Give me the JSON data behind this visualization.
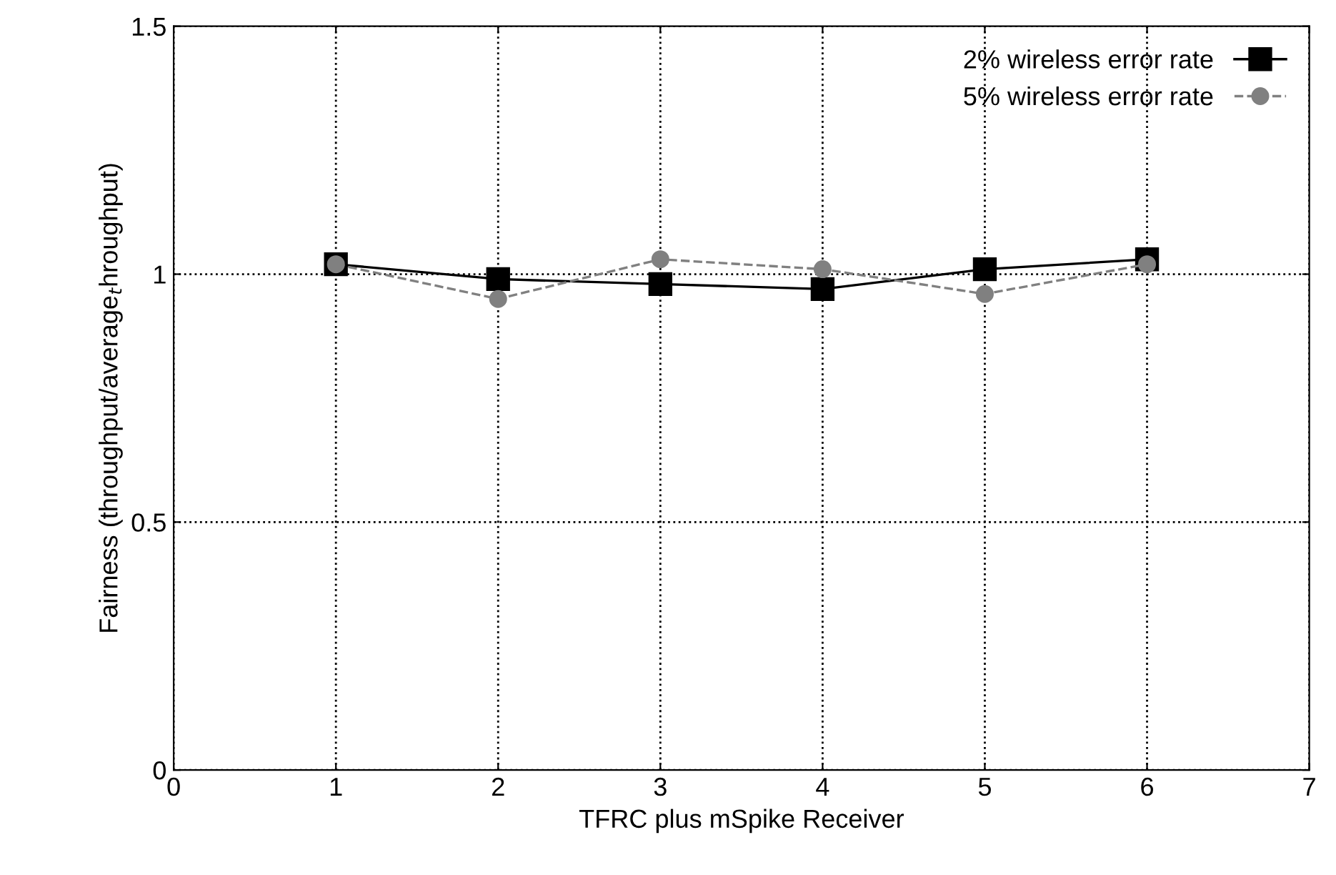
{
  "chart_data": {
    "type": "line",
    "xlabel": "TFRC plus mSpike Receiver",
    "ylabel": "Fairness (throughput/average$_{t}$hroughput)",
    "x": [
      1,
      2,
      3,
      4,
      5,
      6
    ],
    "series": [
      {
        "name": "2% wireless error rate",
        "color": "#000000",
        "values": [
          1.02,
          0.99,
          0.98,
          0.97,
          1.01,
          1.03
        ],
        "marker": "square",
        "line_style": "solid"
      },
      {
        "name": "5% wireless error rate",
        "color": "#808080",
        "values": [
          1.02,
          0.95,
          1.03,
          1.01,
          0.96,
          1.02
        ],
        "marker": "circle",
        "line_style": "dashed"
      }
    ],
    "xlim": [
      0,
      7
    ],
    "xticks": [
      0,
      1,
      2,
      3,
      4,
      5,
      6,
      7
    ],
    "ylim": [
      0,
      1.5
    ],
    "yticks": [
      0,
      0.5,
      1,
      1.5
    ],
    "grid": true,
    "legend": "top right"
  }
}
